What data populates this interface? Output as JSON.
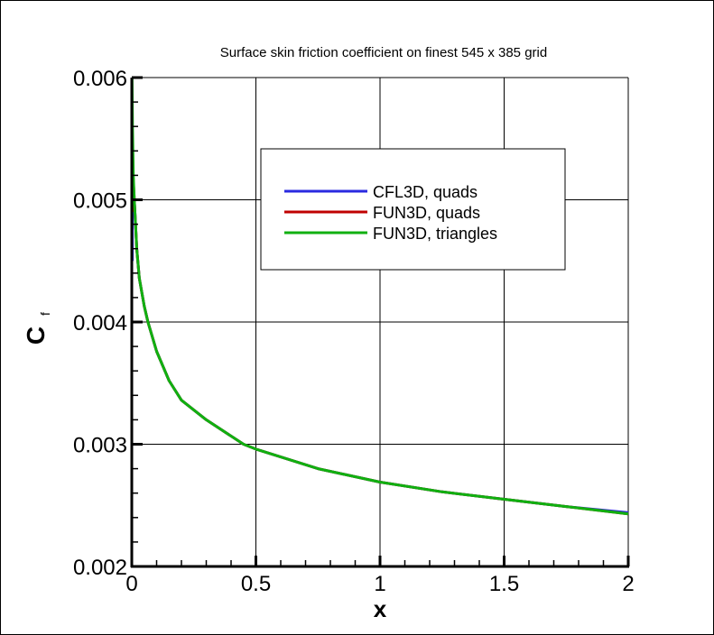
{
  "chart_data": {
    "type": "line",
    "title": "Surface skin friction coefficient on finest 545 x 385 grid",
    "xlabel": "x",
    "ylabel": "C",
    "ylabel_subscript": "f",
    "xlim": [
      0,
      2
    ],
    "ylim": [
      0.002,
      0.006
    ],
    "xticks": [
      "0",
      "0.5",
      "1",
      "1.5",
      "2"
    ],
    "yticks": [
      "0.002",
      "0.003",
      "0.004",
      "0.005",
      "0.006"
    ],
    "grid": true,
    "legend_position": "top-right",
    "series": [
      {
        "name": "CFL3D, quads",
        "color": "#2a2ae0",
        "x": [
          0.002,
          0.002,
          0.005,
          0.01,
          0.02,
          0.03,
          0.05,
          0.065,
          0.1,
          0.15,
          0.2,
          0.3,
          0.45,
          0.5,
          0.75,
          1.0,
          1.25,
          1.5,
          1.75,
          2.0
        ],
        "y": [
          0.0045,
          0.0052,
          0.0051,
          0.005,
          0.0046,
          0.00436,
          0.00413,
          0.004,
          0.00376,
          0.00352,
          0.00336,
          0.0032,
          0.003,
          0.00296,
          0.0028,
          0.00269,
          0.00261,
          0.00255,
          0.00249,
          0.00244
        ]
      },
      {
        "name": "FUN3D, quads",
        "color": "#c00000",
        "x": [
          0.002,
          0.002,
          0.005,
          0.01,
          0.02,
          0.03,
          0.05,
          0.065,
          0.1,
          0.15,
          0.2,
          0.3,
          0.45,
          0.5,
          0.75,
          1.0,
          1.25,
          1.5,
          1.75,
          2.0
        ],
        "y": [
          0.0049,
          0.0055,
          0.0052,
          0.005,
          0.0046,
          0.00436,
          0.00413,
          0.004,
          0.00376,
          0.00352,
          0.00336,
          0.0032,
          0.003,
          0.00296,
          0.0028,
          0.00269,
          0.00261,
          0.00255,
          0.00249,
          0.00243
        ]
      },
      {
        "name": "FUN3D, triangles",
        "color": "#10b010",
        "x": [
          0.001,
          0.003,
          0.006,
          0.01,
          0.02,
          0.03,
          0.05,
          0.065,
          0.1,
          0.15,
          0.2,
          0.3,
          0.45,
          0.5,
          0.75,
          1.0,
          1.25,
          1.5,
          1.75,
          2.0
        ],
        "y": [
          0.006,
          0.0056,
          0.0052,
          0.005,
          0.0046,
          0.00436,
          0.00413,
          0.004,
          0.00376,
          0.00352,
          0.00336,
          0.0032,
          0.003,
          0.00296,
          0.0028,
          0.00269,
          0.00261,
          0.00255,
          0.00249,
          0.00243
        ]
      }
    ]
  }
}
